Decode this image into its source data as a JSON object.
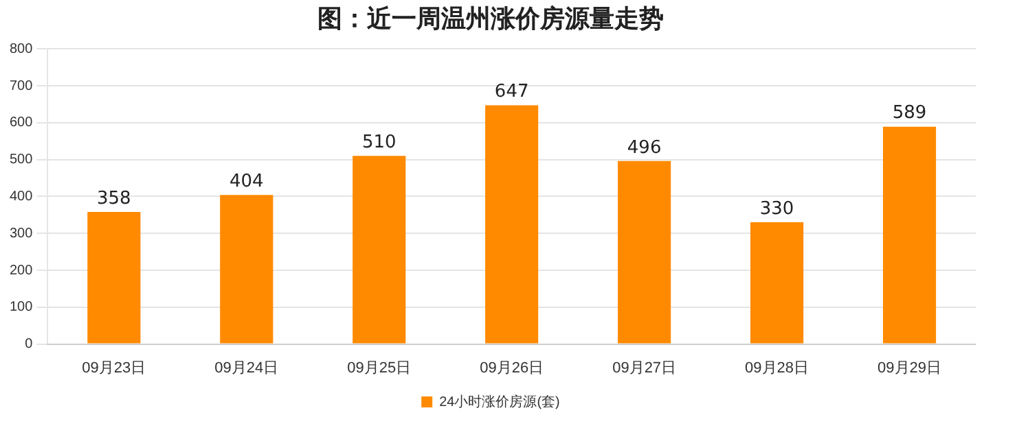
{
  "chart_data": {
    "type": "bar",
    "title": "图：近一周温州涨价房源量走势",
    "categories": [
      "09月23日",
      "09月24日",
      "09月25日",
      "09月26日",
      "09月27日",
      "09月28日",
      "09月29日"
    ],
    "series": [
      {
        "name": "24小时涨价房源(套)",
        "color": "#ff8a00",
        "values": [
          358,
          404,
          510,
          647,
          496,
          330,
          589
        ]
      }
    ],
    "ylim": [
      0,
      800
    ],
    "yticks": [
      0,
      100,
      200,
      300,
      400,
      500,
      600,
      700,
      800
    ],
    "grid": "y",
    "legend": "bottom",
    "data_labels": true
  }
}
